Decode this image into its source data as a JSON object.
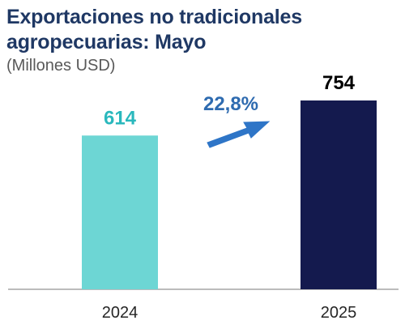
{
  "chart_data": {
    "type": "bar",
    "title_line1": "Exportaciones no tradicionales",
    "title_line2": "agropecuarias: Mayo",
    "subtitle": "(Millones USD)",
    "categories": [
      "2024",
      "2025"
    ],
    "values": [
      614,
      754
    ],
    "value_labels": [
      "614",
      "754"
    ],
    "bar_colors": [
      "#6dd6d4",
      "#141a4e"
    ],
    "label_colors": [
      "#2ab8bd",
      "#000000"
    ],
    "growth_label": "22,8%",
    "growth_color": "#2e6bb0",
    "arrow_color": "#2e75c7",
    "title_color": "#1f3864"
  }
}
